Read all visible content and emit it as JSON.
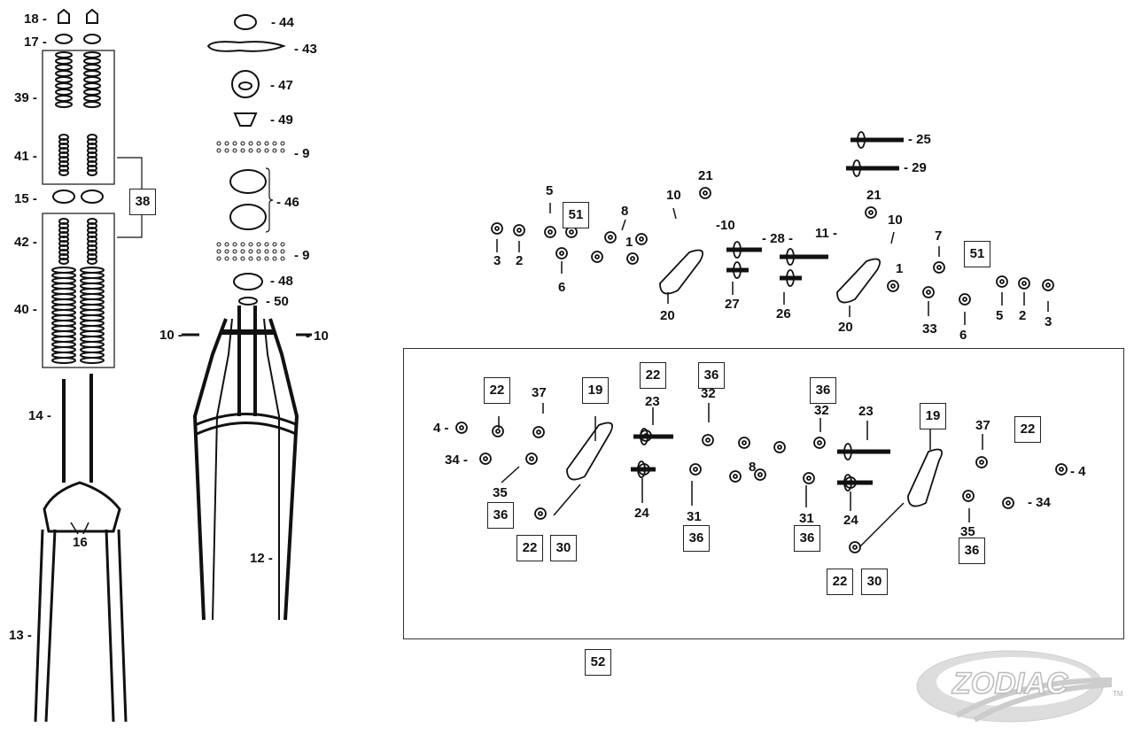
{
  "diagram": {
    "labels": {
      "l18": "18 -",
      "l17": "17 -",
      "l39": "39 -",
      "l41": "41 -",
      "l15": "15 -",
      "l42": "42 -",
      "l40": "40 -",
      "l14": "14 -",
      "l16": "16",
      "l13": "13 -",
      "b38": "38",
      "l44": "- 44",
      "l43": "- 43",
      "l47": "- 47",
      "l49": "- 49",
      "l9a": "- 9",
      "l46": "- 46",
      "l9b": "- 9",
      "l48": "- 48",
      "l50": "- 50",
      "l10a": "10 -",
      "l10b": "- 10",
      "l12": "12 -",
      "l25": "- 25",
      "l29": "- 29",
      "l21a": "21",
      "l21b": "21",
      "l10c": "10",
      "l10d": "-10",
      "l5a": "5",
      "b51a": "51",
      "l8a": "8",
      "l1a": "1",
      "l3a": "3",
      "l2a": "2",
      "l6a": "6",
      "l28": "- 28 -",
      "l11": "11 -",
      "l10e": "10",
      "l7": "7",
      "b51b": "51",
      "l1b": "1",
      "l20a": "20",
      "l27": "27",
      "l26": "26",
      "l20b": "20",
      "l33": "33",
      "l6b": "6",
      "l5b": "5",
      "l2b": "2",
      "l3b": "3",
      "b52": "52",
      "b22a": "22",
      "l37a": "37",
      "b19a": "19",
      "b22b": "22",
      "l23a": "23",
      "b36a": "36",
      "l32a": "32",
      "b36b": "36",
      "l32b": "32",
      "l23b": "23",
      "b19b": "19",
      "l37b": "37",
      "b22c": "22",
      "l4a": "4 -",
      "l34a": "34 -",
      "l8b": "8",
      "l35a": "35",
      "b36c": "36",
      "l24a": "24",
      "l31a": "31",
      "l31b": "31",
      "l24b": "24",
      "l35b": "35",
      "b36d": "36",
      "b36e": "36",
      "b36f": "36",
      "l34b": "- 34",
      "l4b": "- 4",
      "b22d": "22",
      "b30a": "30",
      "b22e": "22",
      "b30b": "30"
    },
    "logo": {
      "text": "ZODIAC",
      "trademark": "TM"
    }
  }
}
